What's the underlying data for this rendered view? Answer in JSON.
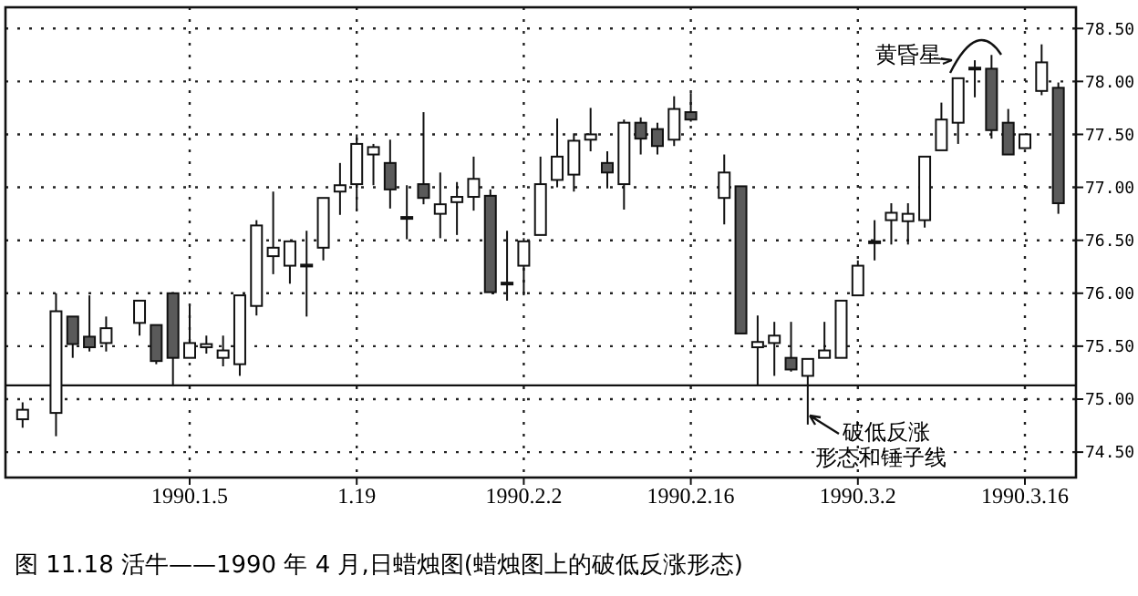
{
  "chart_data": {
    "type": "candlestick",
    "title": "图 11.18   活牛——1990 年 4 月,日蜡烛图(蜡烛图上的破低反涨形态)",
    "categories": [
      null,
      null,
      null,
      null,
      null,
      null,
      null,
      null,
      null,
      null,
      "1990.1.5",
      null,
      null,
      null,
      null,
      null,
      null,
      null,
      null,
      null,
      "1.19",
      null,
      null,
      null,
      null,
      null,
      null,
      null,
      null,
      null,
      "1990.2.2",
      null,
      null,
      null,
      null,
      null,
      null,
      null,
      null,
      null,
      "1990.2.16",
      null,
      null,
      null,
      null,
      null,
      null,
      null,
      null,
      null,
      "1990.3.2",
      null,
      null,
      null,
      null,
      null,
      null,
      null,
      null,
      null,
      "1990.3.16",
      null,
      null
    ],
    "ohlc": [
      [
        74.81,
        74.97,
        74.73,
        74.9
      ],
      null,
      [
        74.87,
        76.0,
        74.65,
        75.83
      ],
      [
        75.78,
        75.78,
        75.39,
        75.52
      ],
      [
        75.59,
        75.98,
        75.45,
        75.49
      ],
      [
        75.53,
        75.78,
        75.45,
        75.67
      ],
      null,
      [
        75.72,
        75.93,
        75.6,
        75.93
      ],
      [
        75.7,
        75.7,
        75.33,
        75.36
      ],
      [
        76.0,
        76.0,
        75.12,
        75.39
      ],
      [
        75.39,
        75.88,
        75.39,
        75.53
      ],
      [
        75.49,
        75.6,
        75.43,
        75.52
      ],
      [
        75.39,
        75.6,
        75.31,
        75.46
      ],
      [
        75.33,
        75.98,
        75.22,
        75.98
      ],
      [
        75.88,
        76.69,
        75.79,
        76.64
      ],
      [
        76.35,
        76.96,
        76.18,
        76.43
      ],
      [
        76.26,
        76.49,
        76.09,
        76.49
      ],
      [
        76.26,
        76.59,
        75.78,
        76.27
      ],
      [
        76.43,
        76.9,
        76.31,
        76.9
      ],
      [
        76.96,
        77.23,
        76.74,
        77.02
      ],
      [
        77.03,
        77.5,
        76.79,
        77.41
      ],
      [
        77.31,
        77.41,
        77.02,
        77.38
      ],
      [
        77.23,
        77.45,
        76.8,
        76.98
      ],
      [
        76.71,
        77.02,
        76.51,
        76.72
      ],
      [
        77.03,
        77.71,
        76.84,
        76.9
      ],
      [
        76.75,
        77.14,
        76.52,
        76.84
      ],
      [
        76.86,
        77.05,
        76.55,
        76.91
      ],
      [
        76.91,
        77.29,
        76.78,
        77.08
      ],
      [
        76.92,
        76.98,
        76.01,
        76.01
      ],
      [
        76.09,
        76.59,
        75.93,
        76.1
      ],
      [
        76.26,
        76.52,
        75.98,
        76.49
      ],
      [
        76.55,
        77.29,
        76.55,
        77.03
      ],
      [
        77.07,
        77.65,
        77.0,
        77.29
      ],
      [
        77.12,
        77.51,
        76.96,
        77.44
      ],
      [
        77.45,
        77.75,
        77.34,
        77.5
      ],
      [
        77.23,
        77.34,
        76.99,
        77.14
      ],
      [
        77.03,
        77.64,
        76.79,
        77.61
      ],
      [
        77.61,
        77.66,
        77.31,
        77.46
      ],
      [
        77.55,
        77.61,
        77.31,
        77.39
      ],
      [
        77.45,
        77.86,
        77.39,
        77.74
      ],
      [
        77.71,
        77.89,
        77.62,
        77.64
      ],
      null,
      [
        76.9,
        77.31,
        76.65,
        77.14
      ],
      [
        77.01,
        77.01,
        75.62,
        75.62
      ],
      [
        75.49,
        75.79,
        75.13,
        75.54
      ],
      [
        75.53,
        75.73,
        75.22,
        75.6
      ],
      [
        75.39,
        75.73,
        75.26,
        75.28
      ],
      [
        75.22,
        75.38,
        74.76,
        75.38
      ],
      [
        75.39,
        75.73,
        75.39,
        75.46
      ],
      [
        75.39,
        75.93,
        75.39,
        75.93
      ],
      [
        75.98,
        76.31,
        75.98,
        76.26
      ],
      [
        76.48,
        76.69,
        76.31,
        76.49
      ],
      [
        76.69,
        76.85,
        76.46,
        76.76
      ],
      [
        76.68,
        76.85,
        76.46,
        76.75
      ],
      [
        76.69,
        77.29,
        76.62,
        77.29
      ],
      [
        77.35,
        77.8,
        77.35,
        77.64
      ],
      [
        77.61,
        78.03,
        77.41,
        78.03
      ],
      [
        78.12,
        78.2,
        77.85,
        78.13
      ],
      [
        78.12,
        78.25,
        77.46,
        77.54
      ],
      [
        77.61,
        77.74,
        77.31,
        77.31
      ],
      [
        77.37,
        77.5,
        77.37,
        77.5
      ],
      [
        77.91,
        78.35,
        77.87,
        78.18
      ],
      [
        77.94,
        77.99,
        76.75,
        76.85
      ]
    ],
    "ylim": [
      74.26,
      78.7
    ],
    "yticks": [
      {
        "value": 74.5,
        "label": "74.50"
      },
      {
        "value": 75,
        "label": "75.00"
      },
      {
        "value": 75.5,
        "label": "75.50"
      },
      {
        "value": 76,
        "label": "76.00"
      },
      {
        "value": 76.5,
        "label": "76.50"
      },
      {
        "value": 77,
        "label": "77.00"
      },
      {
        "value": 77.5,
        "label": "77.50"
      },
      {
        "value": 78,
        "label": "78.00"
      },
      {
        "value": 78.5,
        "label": "78.50"
      }
    ],
    "grid": true,
    "ref_lines": [
      {
        "axis": "y",
        "value": 75.13
      }
    ],
    "annotations": [
      "黄昏星",
      "破低反涨",
      "形态和锤子线"
    ]
  }
}
